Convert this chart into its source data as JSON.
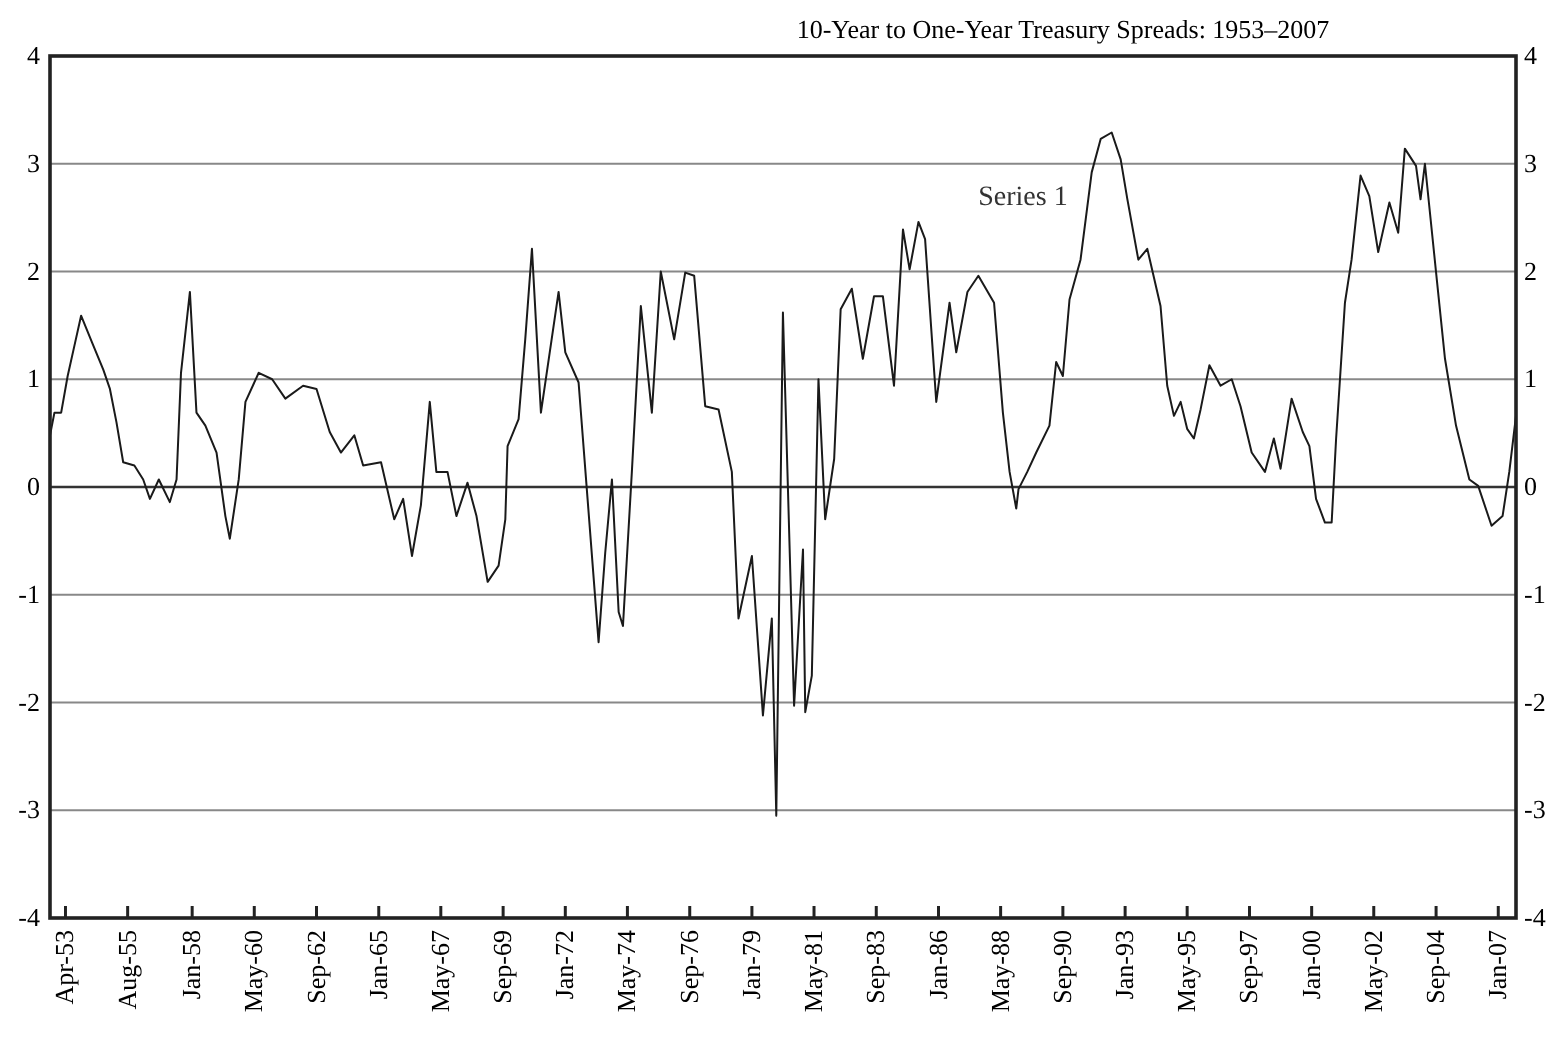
{
  "chart_data": {
    "type": "line",
    "title": "10-Year to One-Year Treasury Spreads: 1953–2007",
    "x": [
      "1952-09",
      "1952-11",
      "1953-02",
      "1953-05",
      "1953-08",
      "1953-11",
      "1954-04",
      "1954-09",
      "1954-12",
      "1955-03",
      "1955-06",
      "1955-11",
      "1956-03",
      "1956-06",
      "1956-10",
      "1957-03",
      "1957-06",
      "1957-08",
      "1957-12",
      "1958-03",
      "1958-07",
      "1958-12",
      "1959-04",
      "1959-06",
      "1959-10",
      "1960-01",
      "1960-07",
      "1961-01",
      "1961-07",
      "1962-03",
      "1962-09",
      "1963-03",
      "1963-08",
      "1964-02",
      "1964-06",
      "1965-02",
      "1965-08",
      "1965-12",
      "1966-04",
      "1966-08",
      "1966-12",
      "1967-03",
      "1967-08",
      "1967-12",
      "1968-05",
      "1968-09",
      "1969-02",
      "1969-07",
      "1969-10",
      "1969-11",
      "1970-04",
      "1970-07",
      "1970-10",
      "1971-02",
      "1971-10",
      "1972-01",
      "1972-07",
      "1972-11",
      "1973-04",
      "1973-07",
      "1973-10",
      "1974-01",
      "1974-03",
      "1974-07",
      "1974-11",
      "1975-04",
      "1975-08",
      "1976-02",
      "1976-07",
      "1976-11",
      "1977-04",
      "1977-10",
      "1978-04",
      "1978-07",
      "1979-01",
      "1979-06",
      "1979-10",
      "1979-12",
      "1980-03",
      "1980-08",
      "1980-12",
      "1981-01",
      "1981-04",
      "1981-07",
      "1981-10",
      "1982-02",
      "1982-05",
      "1982-10",
      "1983-03",
      "1983-08",
      "1983-12",
      "1984-05",
      "1984-09",
      "1984-12",
      "1985-04",
      "1985-07",
      "1985-12",
      "1986-06",
      "1986-09",
      "1987-02",
      "1987-07",
      "1988-02",
      "1988-06",
      "1988-09",
      "1988-12",
      "1989-01",
      "1989-05",
      "1989-09",
      "1990-03",
      "1990-06",
      "1990-09",
      "1990-12",
      "1991-05",
      "1991-10",
      "1992-02",
      "1992-07",
      "1992-11",
      "1993-02",
      "1993-07",
      "1993-11",
      "1994-05",
      "1994-08",
      "1994-11",
      "1995-02",
      "1995-05",
      "1995-08",
      "1995-11",
      "1996-03",
      "1996-08",
      "1997-01",
      "1997-05",
      "1997-10",
      "1998-04",
      "1998-08",
      "1998-11",
      "1999-04",
      "1999-09",
      "1999-12",
      "2000-03",
      "2000-07",
      "2000-10",
      "2000-12",
      "2001-04",
      "2001-07",
      "2001-11",
      "2002-03",
      "2002-07",
      "2002-12",
      "2003-04",
      "2003-07",
      "2003-12",
      "2004-02",
      "2004-04",
      "2004-09",
      "2005-01",
      "2005-06",
      "2005-12",
      "2006-04",
      "2006-10",
      "2007-03",
      "2007-06",
      "2007-09"
    ],
    "series": [
      {
        "name": "Series 1",
        "color": "#1a1a1a",
        "values": [
          0.48,
          0.69,
          0.69,
          1.03,
          1.31,
          1.59,
          1.34,
          1.09,
          0.91,
          0.6,
          0.23,
          0.2,
          0.07,
          -0.11,
          0.07,
          -0.14,
          0.07,
          1.06,
          1.81,
          0.69,
          0.57,
          0.32,
          -0.27,
          -0.48,
          0.07,
          0.79,
          1.06,
          1.0,
          0.82,
          0.94,
          0.91,
          0.51,
          0.32,
          0.48,
          0.2,
          0.23,
          -0.3,
          -0.11,
          -0.64,
          -0.17,
          0.79,
          0.14,
          0.14,
          -0.27,
          0.04,
          -0.27,
          -0.88,
          -0.73,
          -0.3,
          0.38,
          0.63,
          1.37,
          2.21,
          0.69,
          1.81,
          1.25,
          0.97,
          -0.11,
          -1.44,
          -0.61,
          0.07,
          -1.16,
          -1.29,
          0.14,
          1.68,
          0.69,
          2.0,
          1.37,
          1.99,
          1.96,
          0.75,
          0.72,
          0.14,
          -1.22,
          -0.64,
          -2.12,
          -1.22,
          -3.05,
          1.62,
          -2.03,
          -0.58,
          -2.09,
          -1.75,
          1.0,
          -0.3,
          0.26,
          1.65,
          1.84,
          1.19,
          1.77,
          1.77,
          0.94,
          2.39,
          2.02,
          2.46,
          2.3,
          0.79,
          1.71,
          1.25,
          1.81,
          1.96,
          1.71,
          0.69,
          0.14,
          -0.2,
          -0.02,
          0.14,
          0.32,
          0.57,
          1.16,
          1.03,
          1.74,
          2.11,
          2.92,
          3.23,
          3.29,
          3.04,
          2.67,
          2.11,
          2.21,
          1.68,
          0.94,
          0.66,
          0.79,
          0.54,
          0.45,
          0.72,
          1.13,
          0.94,
          1.0,
          0.75,
          0.32,
          0.14,
          0.45,
          0.17,
          0.82,
          0.51,
          0.38,
          -0.11,
          -0.33,
          -0.33,
          0.45,
          1.71,
          2.11,
          2.89,
          2.7,
          2.18,
          2.64,
          2.36,
          3.14,
          2.98,
          2.67,
          3.0,
          1.99,
          1.19,
          0.57,
          0.07,
          0.01,
          -0.36,
          -0.27,
          0.14,
          0.66
        ]
      }
    ],
    "xlim": [
      "1952-09",
      "2007-09"
    ],
    "xticks": [
      {
        "value": "1953-04",
        "label": "Apr-53"
      },
      {
        "value": "1955-08",
        "label": "Aug-55"
      },
      {
        "value": "1958-01",
        "label": "Jan-58"
      },
      {
        "value": "1960-05",
        "label": "May-60"
      },
      {
        "value": "1962-09",
        "label": "Sep-62"
      },
      {
        "value": "1965-01",
        "label": "Jan-65"
      },
      {
        "value": "1967-05",
        "label": "May-67"
      },
      {
        "value": "1969-09",
        "label": "Sep-69"
      },
      {
        "value": "1972-01",
        "label": "Jan-72"
      },
      {
        "value": "1974-05",
        "label": "May-74"
      },
      {
        "value": "1976-09",
        "label": "Sep-76"
      },
      {
        "value": "1979-01",
        "label": "Jan-79"
      },
      {
        "value": "1981-05",
        "label": "May-81"
      },
      {
        "value": "1983-09",
        "label": "Sep-83"
      },
      {
        "value": "1986-01",
        "label": "Jan-86"
      },
      {
        "value": "1988-05",
        "label": "May-88"
      },
      {
        "value": "1990-09",
        "label": "Sep-90"
      },
      {
        "value": "1993-01",
        "label": "Jan-93"
      },
      {
        "value": "1995-05",
        "label": "May-95"
      },
      {
        "value": "1997-09",
        "label": "Sep-97"
      },
      {
        "value": "2000-01",
        "label": "Jan-00"
      },
      {
        "value": "2002-05",
        "label": "May-02"
      },
      {
        "value": "2004-09",
        "label": "Sep-04"
      },
      {
        "value": "2007-01",
        "label": "Jan-07"
      }
    ],
    "ylim": [
      -4,
      4
    ],
    "yticks": [
      -4,
      -3,
      -2,
      -1,
      0,
      1,
      2,
      3,
      4
    ],
    "y2lim": [
      -4,
      4
    ],
    "y2ticks": [
      -4,
      -3,
      -2,
      -1,
      0,
      1,
      2,
      3,
      4
    ],
    "grid": "y",
    "legend": false,
    "marker": "none",
    "line_style": "solid"
  }
}
